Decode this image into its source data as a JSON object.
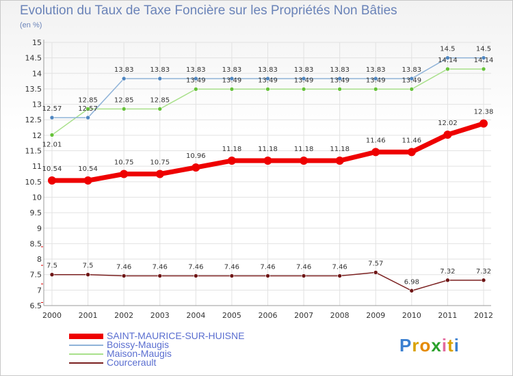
{
  "title": "Evolution du Taux de Taxe Foncière sur les Propriétés Non Bâties",
  "unit_label": "(en %)",
  "logo": {
    "text": "Proxiti",
    "letter_colors": [
      "#3a7fd0",
      "#d9a100",
      "#e58a00",
      "#2aa12a",
      "#e36a9e",
      "#d9a100",
      "#3a7fd0"
    ]
  },
  "chart_data": {
    "type": "line",
    "title": "Evolution du Taux de Taxe Foncière sur les Propriétés Non Bâties",
    "ylabel": "(en %)",
    "xlabel": "",
    "ylim": [
      6.5,
      15
    ],
    "ytick_step": 0.5,
    "x": [
      2000,
      2001,
      2002,
      2003,
      2004,
      2005,
      2006,
      2007,
      2008,
      2009,
      2010,
      2011,
      2012
    ],
    "series": [
      {
        "name": "Courcerault",
        "color": "#7a1f1f",
        "marker_color": "#6e1515",
        "values": [
          7.5,
          7.5,
          7.46,
          7.46,
          7.46,
          7.46,
          7.46,
          7.46,
          7.46,
          7.57,
          6.98,
          7.32,
          7.32
        ],
        "labels": [
          "7.5",
          "7.5",
          "7.46",
          "7.46",
          "7.46",
          "7.46",
          "7.46",
          "7.46",
          "7.46",
          "7.57",
          "6.98",
          "7.32",
          "7.32"
        ]
      },
      {
        "name": "Maison-Maugis",
        "color": "#a8e08a",
        "marker_color": "#66c23a",
        "values": [
          12.01,
          12.85,
          12.85,
          12.85,
          13.49,
          13.49,
          13.49,
          13.49,
          13.49,
          13.49,
          13.49,
          14.14,
          14.14
        ],
        "labels": [
          "12.01",
          "12.85",
          "12.85",
          "12.85",
          "13.49",
          "13.49",
          "13.49",
          "13.49",
          "13.49",
          "13.49",
          "13.49",
          "14.14",
          "14.14"
        ]
      },
      {
        "name": "Boissy-Maugis",
        "color": "#8fb3d8",
        "marker_color": "#4f86c0",
        "values": [
          12.57,
          12.57,
          13.83,
          13.83,
          13.83,
          13.83,
          13.83,
          13.83,
          13.83,
          13.83,
          13.83,
          14.5,
          14.5
        ],
        "labels": [
          "12.57",
          "12.57",
          "13.83",
          "13.83",
          "13.83",
          "13.83",
          "13.83",
          "13.83",
          "13.83",
          "13.83",
          "13.83",
          "14.5",
          "14.5"
        ]
      },
      {
        "name": "SAINT-MAURICE-SUR-HUISNE",
        "color": "#ee0000",
        "marker_color": "#ee0000",
        "values": [
          10.54,
          10.54,
          10.75,
          10.75,
          10.96,
          11.18,
          11.18,
          11.18,
          11.18,
          11.46,
          11.46,
          12.02,
          12.38
        ],
        "labels": [
          "10.54",
          "10.54",
          "10.75",
          "10.75",
          "10.96",
          "11.18",
          "11.18",
          "11.18",
          "11.18",
          "11.46",
          "11.46",
          "12.02",
          "12.38"
        ]
      }
    ],
    "legend": [
      {
        "name": "SAINT-MAURICE-SUR-HUISNE",
        "color": "#ee0000",
        "thick": true
      },
      {
        "name": "Boissy-Maugis",
        "color": "#8fb3d8",
        "thick": false
      },
      {
        "name": "Maison-Maugis",
        "color": "#a8e08a",
        "thick": false
      },
      {
        "name": "Courcerault",
        "color": "#7a1f1f",
        "thick": false
      }
    ]
  }
}
